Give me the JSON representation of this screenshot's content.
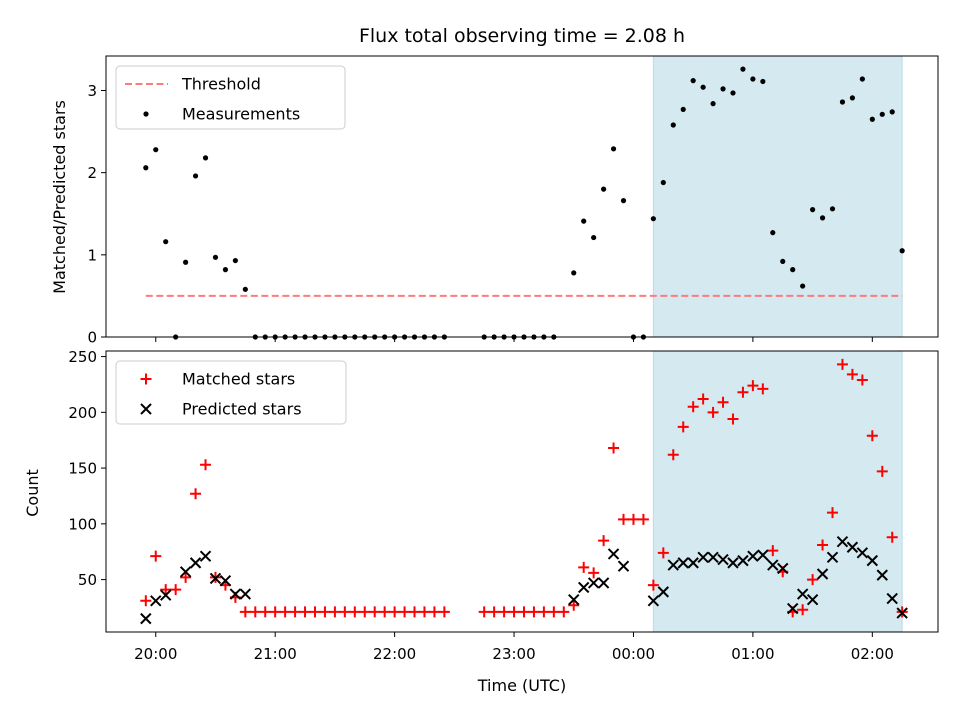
{
  "chart_data": [
    {
      "type": "scatter",
      "title": "Flux total observing time = 2.08 h",
      "xlabel": "",
      "ylabel": "Matched/Predicted stars",
      "ylim": [
        0,
        3.42
      ],
      "yticks": [
        "0",
        "1",
        "2",
        "3"
      ],
      "shaded_interval": [
        "00:10",
        "02:15"
      ],
      "shade_color": "#d4e9f0",
      "legend_position": "top-left",
      "series": [
        {
          "name": "Threshold",
          "kind": "dashed-line",
          "color": "#ff7b7b",
          "points": [
            [
              "19:55",
              0.5
            ],
            [
              "02:15",
              0.5
            ]
          ]
        },
        {
          "name": "Measurements",
          "kind": "dots",
          "color": "#000000",
          "points": [
            [
              "19:55",
              2.06
            ],
            [
              "20:00",
              2.28
            ],
            [
              "20:05",
              1.16
            ],
            [
              "20:10",
              0.0
            ],
            [
              "20:15",
              0.91
            ],
            [
              "20:20",
              1.96
            ],
            [
              "20:25",
              2.18
            ],
            [
              "20:30",
              0.97
            ],
            [
              "20:35",
              0.82
            ],
            [
              "20:40",
              0.93
            ],
            [
              "20:45",
              0.58
            ],
            [
              "20:50",
              0.0
            ],
            [
              "20:55",
              0.0
            ],
            [
              "21:00",
              0.0
            ],
            [
              "21:05",
              0.0
            ],
            [
              "21:10",
              0.0
            ],
            [
              "21:15",
              0.0
            ],
            [
              "21:20",
              0.0
            ],
            [
              "21:25",
              0.0
            ],
            [
              "21:30",
              0.0
            ],
            [
              "21:35",
              0.0
            ],
            [
              "21:40",
              0.0
            ],
            [
              "21:45",
              0.0
            ],
            [
              "21:50",
              0.0
            ],
            [
              "21:55",
              0.0
            ],
            [
              "22:00",
              0.0
            ],
            [
              "22:05",
              0.0
            ],
            [
              "22:10",
              0.0
            ],
            [
              "22:15",
              0.0
            ],
            [
              "22:20",
              0.0
            ],
            [
              "22:25",
              0.0
            ],
            [
              "22:45",
              0.0
            ],
            [
              "22:50",
              0.0
            ],
            [
              "22:55",
              0.0
            ],
            [
              "23:00",
              0.0
            ],
            [
              "23:05",
              0.0
            ],
            [
              "23:10",
              0.0
            ],
            [
              "23:15",
              0.0
            ],
            [
              "23:20",
              0.0
            ],
            [
              "23:30",
              0.78
            ],
            [
              "23:35",
              1.41
            ],
            [
              "23:40",
              1.21
            ],
            [
              "23:45",
              1.8
            ],
            [
              "23:50",
              2.29
            ],
            [
              "23:55",
              1.66
            ],
            [
              "00:00",
              0.0
            ],
            [
              "00:05",
              0.0
            ],
            [
              "00:10",
              1.44
            ],
            [
              "00:15",
              1.88
            ],
            [
              "00:20",
              2.58
            ],
            [
              "00:25",
              2.77
            ],
            [
              "00:30",
              3.12
            ],
            [
              "00:35",
              3.04
            ],
            [
              "00:40",
              2.84
            ],
            [
              "00:45",
              3.02
            ],
            [
              "00:50",
              2.97
            ],
            [
              "00:55",
              3.26
            ],
            [
              "01:00",
              3.14
            ],
            [
              "01:05",
              3.11
            ],
            [
              "01:10",
              1.27
            ],
            [
              "01:15",
              0.92
            ],
            [
              "01:20",
              0.82
            ],
            [
              "01:25",
              0.62
            ],
            [
              "01:30",
              1.55
            ],
            [
              "01:35",
              1.45
            ],
            [
              "01:40",
              1.56
            ],
            [
              "01:45",
              2.86
            ],
            [
              "01:50",
              2.91
            ],
            [
              "01:55",
              3.14
            ],
            [
              "02:00",
              2.65
            ],
            [
              "02:05",
              2.71
            ],
            [
              "02:10",
              2.74
            ],
            [
              "02:15",
              1.05
            ]
          ]
        }
      ]
    },
    {
      "type": "scatter",
      "title": "",
      "xlabel": "Time (UTC)",
      "ylabel": "Count",
      "ylim": [
        3,
        255
      ],
      "yticks": [
        "50",
        "100",
        "150",
        "200",
        "250"
      ],
      "xticks": [
        "20:00",
        "21:00",
        "22:00",
        "23:00",
        "00:00",
        "01:00",
        "02:00"
      ],
      "xlim": [
        "19:35",
        "02:33"
      ],
      "shaded_interval": [
        "00:10",
        "02:15"
      ],
      "shade_color": "#d4e9f0",
      "legend_position": "top-left",
      "series": [
        {
          "name": "Matched stars",
          "kind": "plus",
          "color": "#ff0000",
          "points": [
            [
              "19:55",
              31
            ],
            [
              "20:00",
              71
            ],
            [
              "20:05",
              41
            ],
            [
              "20:10",
              41
            ],
            [
              "20:15",
              52
            ],
            [
              "20:20",
              127
            ],
            [
              "20:25",
              153
            ],
            [
              "20:30",
              52
            ],
            [
              "20:35",
              45
            ],
            [
              "20:40",
              34
            ],
            [
              "20:45",
              21
            ],
            [
              "20:50",
              21
            ],
            [
              "20:55",
              21
            ],
            [
              "21:00",
              21
            ],
            [
              "21:05",
              21
            ],
            [
              "21:10",
              21
            ],
            [
              "21:15",
              21
            ],
            [
              "21:20",
              21
            ],
            [
              "21:25",
              21
            ],
            [
              "21:30",
              21
            ],
            [
              "21:35",
              21
            ],
            [
              "21:40",
              21
            ],
            [
              "21:45",
              21
            ],
            [
              "21:50",
              21
            ],
            [
              "21:55",
              21
            ],
            [
              "22:00",
              21
            ],
            [
              "22:05",
              21
            ],
            [
              "22:10",
              21
            ],
            [
              "22:15",
              21
            ],
            [
              "22:20",
              21
            ],
            [
              "22:25",
              21
            ],
            [
              "22:45",
              21
            ],
            [
              "22:50",
              21
            ],
            [
              "22:55",
              21
            ],
            [
              "23:00",
              21
            ],
            [
              "23:05",
              21
            ],
            [
              "23:10",
              21
            ],
            [
              "23:15",
              21
            ],
            [
              "23:20",
              21
            ],
            [
              "23:25",
              21
            ],
            [
              "23:30",
              27
            ],
            [
              "23:35",
              61
            ],
            [
              "23:40",
              56
            ],
            [
              "23:45",
              85
            ],
            [
              "23:50",
              168
            ],
            [
              "23:55",
              104
            ],
            [
              "00:00",
              104
            ],
            [
              "00:05",
              104
            ],
            [
              "00:10",
              45
            ],
            [
              "00:15",
              74
            ],
            [
              "00:20",
              162
            ],
            [
              "00:25",
              187
            ],
            [
              "00:30",
              205
            ],
            [
              "00:35",
              212
            ],
            [
              "00:40",
              200
            ],
            [
              "00:45",
              209
            ],
            [
              "00:50",
              194
            ],
            [
              "00:55",
              218
            ],
            [
              "01:00",
              224
            ],
            [
              "01:05",
              221
            ],
            [
              "01:10",
              76
            ],
            [
              "01:15",
              57
            ],
            [
              "01:20",
              21
            ],
            [
              "01:25",
              23
            ],
            [
              "01:30",
              50
            ],
            [
              "01:35",
              81
            ],
            [
              "01:40",
              110
            ],
            [
              "01:45",
              243
            ],
            [
              "01:50",
              234
            ],
            [
              "01:55",
              229
            ],
            [
              "02:00",
              179
            ],
            [
              "02:05",
              147
            ],
            [
              "02:10",
              88
            ],
            [
              "02:15",
              21
            ]
          ]
        },
        {
          "name": "Predicted stars",
          "kind": "x",
          "color": "#000000",
          "points": [
            [
              "19:55",
              15
            ],
            [
              "20:00",
              31
            ],
            [
              "20:05",
              36
            ],
            [
              "20:15",
              57
            ],
            [
              "20:20",
              65
            ],
            [
              "20:25",
              71
            ],
            [
              "20:30",
              51
            ],
            [
              "20:35",
              49
            ],
            [
              "20:40",
              37
            ],
            [
              "20:45",
              37
            ],
            [
              "23:30",
              32
            ],
            [
              "23:35",
              43
            ],
            [
              "23:40",
              47
            ],
            [
              "23:45",
              47
            ],
            [
              "23:50",
              73
            ],
            [
              "23:55",
              62
            ],
            [
              "00:10",
              31
            ],
            [
              "00:15",
              39
            ],
            [
              "00:20",
              63
            ],
            [
              "00:25",
              65
            ],
            [
              "00:30",
              65
            ],
            [
              "00:35",
              70
            ],
            [
              "00:40",
              70
            ],
            [
              "00:45",
              68
            ],
            [
              "00:50",
              65
            ],
            [
              "00:55",
              67
            ],
            [
              "01:00",
              71
            ],
            [
              "01:05",
              72
            ],
            [
              "01:10",
              63
            ],
            [
              "01:15",
              60
            ],
            [
              "01:20",
              24
            ],
            [
              "01:25",
              37
            ],
            [
              "01:30",
              32
            ],
            [
              "01:35",
              55
            ],
            [
              "01:40",
              70
            ],
            [
              "01:45",
              84
            ],
            [
              "01:50",
              79
            ],
            [
              "01:55",
              74
            ],
            [
              "02:00",
              67
            ],
            [
              "02:05",
              54
            ],
            [
              "02:10",
              33
            ],
            [
              "02:15",
              20
            ]
          ]
        }
      ]
    }
  ]
}
